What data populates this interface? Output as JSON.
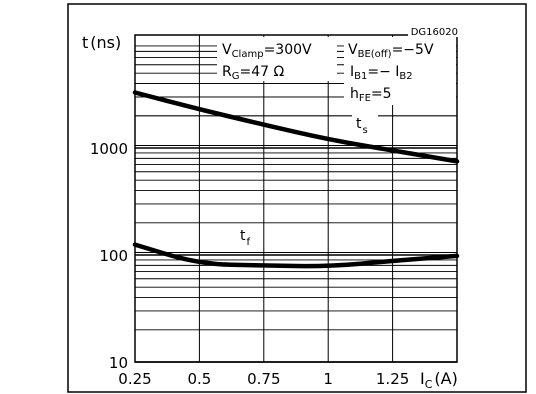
{
  "chart_data": {
    "type": "line",
    "code": "DG16020",
    "y_axis_label": "t",
    "y_axis_unit": "(ns)",
    "x_axis_label": "I",
    "x_axis_label_sub": "C",
    "x_axis_unit": "(A)",
    "xlim": [
      0.25,
      1.5
    ],
    "ylim": [
      10,
      5000
    ],
    "y_scale": "log",
    "grid": true,
    "x_ticks": [
      {
        "value": 0.25,
        "label": "0.25"
      },
      {
        "value": 0.5,
        "label": "0.5"
      },
      {
        "value": 0.75,
        "label": "0.75"
      },
      {
        "value": 1.0,
        "label": "1"
      },
      {
        "value": 1.25,
        "label": "1.25"
      }
    ],
    "y_ticks": [
      {
        "value": 10,
        "label": "10"
      },
      {
        "value": 100,
        "label": "100"
      },
      {
        "value": 1000,
        "label": "1000"
      }
    ],
    "conditions": {
      "vclamp": {
        "sym": "V",
        "sub": "Clamp",
        "value": "=300V"
      },
      "rg": {
        "sym": "R",
        "sub": "G",
        "value": "=47 Ω"
      },
      "vbe": {
        "sym": "V",
        "sub": "BE(off)",
        "value": "=−5V"
      },
      "ib": {
        "sym": "I",
        "sub": "B1",
        "mid": "=− I",
        "sub2": "B2"
      },
      "hfe": {
        "sym": "h",
        "sub": "FE",
        "value": "=5"
      }
    },
    "series": [
      {
        "name": "t",
        "name_sub": "s",
        "x": [
          0.25,
          0.5,
          0.75,
          1.0,
          1.25,
          1.5
        ],
        "y": [
          3300,
          2300,
          1650,
          1200,
          950,
          750
        ]
      },
      {
        "name": "t",
        "name_sub": "f",
        "x": [
          0.25,
          0.5,
          0.75,
          1.0,
          1.25,
          1.5
        ],
        "y": [
          125,
          82,
          80,
          78,
          88,
          98
        ]
      }
    ]
  }
}
